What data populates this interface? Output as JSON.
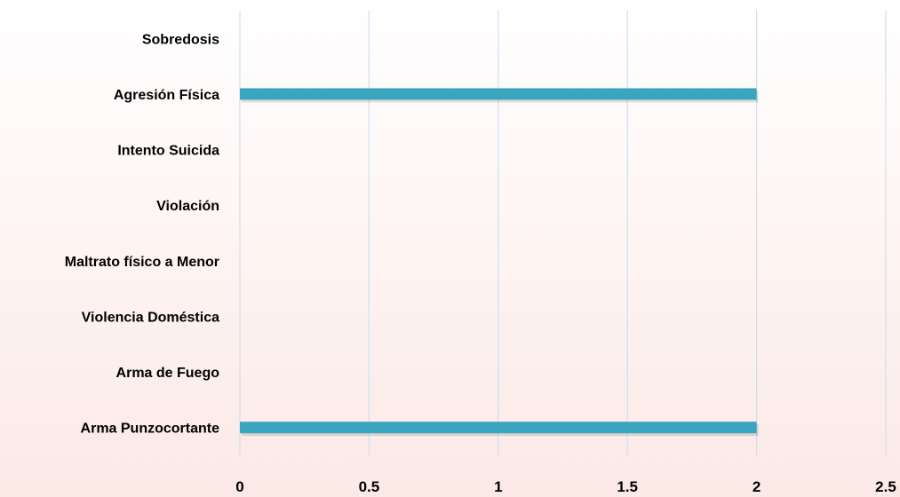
{
  "chart_data": {
    "type": "bar",
    "orientation": "horizontal",
    "categories": [
      "Arma Punzocortante",
      "Arma de Fuego",
      "Violencia Doméstica",
      "Maltrato físico a Menor",
      "Violación ",
      "Intento Suicida",
      "Agresión Física",
      "Sobredosis"
    ],
    "values": [
      2,
      0,
      0,
      0,
      0,
      0,
      2,
      0
    ],
    "title": "",
    "xlabel": "",
    "ylabel": "",
    "xlim": [
      0,
      2.5
    ],
    "x_ticks": [
      "0",
      "0.5",
      "1",
      "1.5",
      "2",
      "2.5"
    ],
    "grid": true,
    "legend": "none",
    "bar_color": "#3aa5bf",
    "grid_color": "#cfdff0"
  }
}
